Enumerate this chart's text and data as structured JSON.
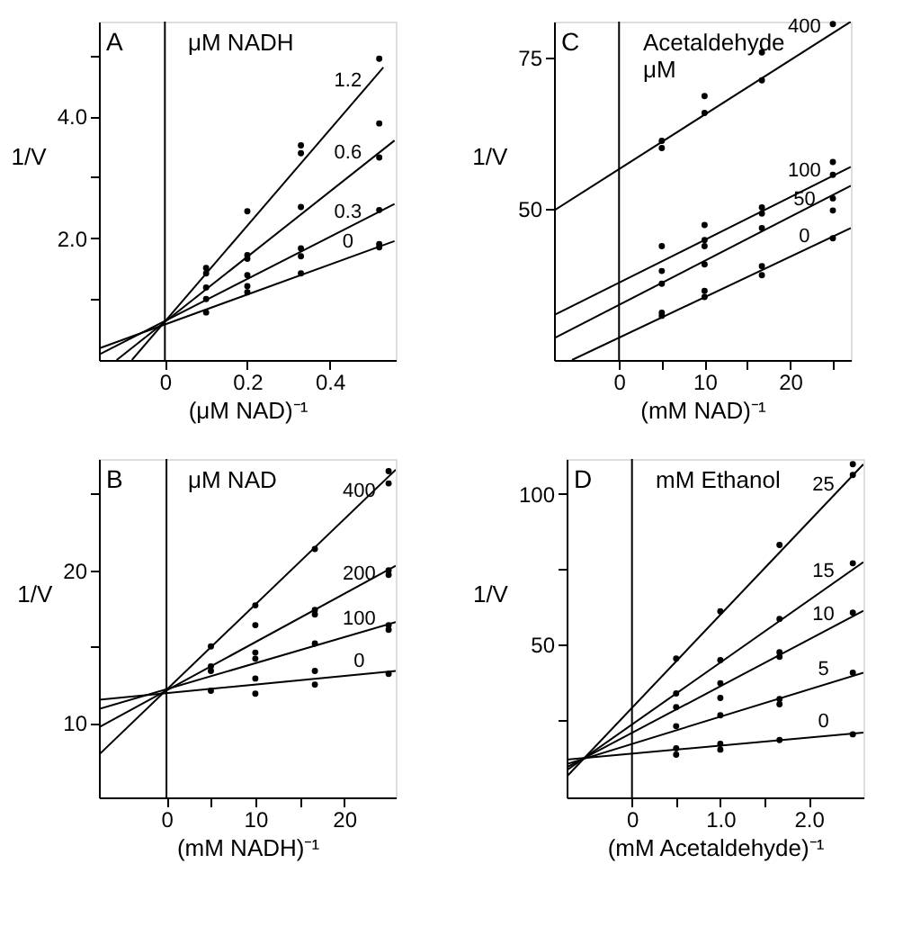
{
  "chart_data": [
    {
      "type": "scatter",
      "xlabel": "(μM NAD)⁻¹",
      "ylabel": "1/V",
      "legend_title": "μM NADH",
      "annotations": [
        "A"
      ],
      "legend": "right",
      "grid": false,
      "marker": "circle",
      "xlim": [
        -0.16,
        0.56
      ],
      "xticks": [
        0,
        0.2,
        0.4
      ],
      "ylim": [
        0,
        5.55
      ],
      "yticks": [
        {
          "value": 1,
          "label": null
        },
        {
          "value": 2,
          "label": "2.0"
        },
        {
          "value": 3,
          "label": null
        },
        {
          "value": 4,
          "label": "4.0"
        },
        {
          "value": 5,
          "label": null
        }
      ],
      "ref_lines": [
        {
          "axis": "x",
          "value": 0
        }
      ],
      "series": [
        {
          "name": "1.2",
          "color": "#000000",
          "x": [
            0.1,
            0.1,
            0.2,
            0.33,
            0.33,
            0.52
          ],
          "values": [
            1.51,
            1.42,
            2.44,
            3.52,
            3.39,
            4.94
          ]
        },
        {
          "name": "0.6",
          "color": "#000000",
          "x": [
            0.1,
            0.2,
            0.2,
            0.33,
            0.52,
            0.52
          ],
          "values": [
            1.19,
            1.72,
            1.66,
            2.51,
            3.32,
            3.88
          ]
        },
        {
          "name": "0.3",
          "color": "#000000",
          "x": [
            0.1,
            0.2,
            0.33,
            0.33,
            0.52
          ],
          "values": [
            1.0,
            1.39,
            1.83,
            1.7,
            2.46
          ]
        },
        {
          "name": "0",
          "color": "#000000",
          "x": [
            0.1,
            0.2,
            0.2,
            0.33,
            0.52,
            0.52
          ],
          "values": [
            0.78,
            1.21,
            1.11,
            1.42,
            1.85,
            1.9
          ]
        },
        {
          "type": "line",
          "marker": "none",
          "line_style": "solid",
          "color": "#000000",
          "x": [
            -0.08,
            0.53
          ],
          "values": [
            0,
            4.8
          ]
        },
        {
          "type": "line",
          "marker": "none",
          "line_style": "solid",
          "color": "#000000",
          "x": [
            -0.117,
            0.557
          ],
          "values": [
            0,
            3.6
          ]
        },
        {
          "type": "line",
          "marker": "none",
          "line_style": "solid",
          "color": "#000000",
          "x": [
            -0.156,
            0.557
          ],
          "values": [
            0.1,
            2.56
          ]
        },
        {
          "type": "line",
          "marker": "none",
          "line_style": "solid",
          "color": "#000000",
          "x": [
            -0.156,
            0.557
          ],
          "values": [
            0.2,
            1.95
          ]
        }
      ]
    },
    {
      "type": "scatter",
      "xlabel": "(mM NAD)⁻¹",
      "ylabel": "1/V",
      "legend_title": "Acetaldehyde\nμM",
      "annotations": [
        "C"
      ],
      "legend": "right",
      "grid": false,
      "marker": "circle",
      "xlim": [
        -7.6,
        27.1
      ],
      "xticks": [
        0,
        {
          "value": 5,
          "label": null
        },
        10,
        {
          "value": 15,
          "label": null
        },
        20,
        {
          "value": 25,
          "label": null
        }
      ],
      "ylim": [
        25,
        80.9
      ],
      "yticks": [
        50,
        75
      ],
      "ref_lines": [
        {
          "axis": "x",
          "value": 0
        }
      ],
      "series": [
        {
          "name": "400",
          "color": "#000000",
          "x": [
            5,
            5,
            10,
            10,
            16.7,
            16.7,
            25
          ],
          "values": [
            61.2,
            60,
            68.6,
            65.8,
            75.8,
            71.2,
            80.5
          ]
        },
        {
          "name": "100",
          "color": "#000000",
          "x": [
            5,
            10,
            10,
            16.7,
            16.7,
            25,
            25
          ],
          "values": [
            43.8,
            47.3,
            44.8,
            50.2,
            49.2,
            55.6,
            57.7
          ]
        },
        {
          "name": "50",
          "color": "#000000",
          "x": [
            5,
            5,
            10,
            10,
            16.7,
            25,
            25
          ],
          "values": [
            39.7,
            37.6,
            43.8,
            40.8,
            46.8,
            51.7,
            49.7
          ]
        },
        {
          "name": "0",
          "color": "#000000",
          "x": [
            5,
            5,
            10,
            10,
            16.7,
            16.7,
            25
          ],
          "values": [
            32.8,
            32.3,
            36.4,
            35.4,
            40.5,
            39,
            45.1
          ]
        },
        {
          "type": "line",
          "marker": "none",
          "line_style": "solid",
          "color": "#000000",
          "x": [
            -7.6,
            27.1
          ],
          "values": [
            49.7,
            80.9
          ]
        },
        {
          "type": "line",
          "marker": "none",
          "line_style": "solid",
          "color": "#000000",
          "x": [
            -7.6,
            27.1
          ],
          "values": [
            32.4,
            56.9
          ]
        },
        {
          "type": "line",
          "marker": "none",
          "line_style": "solid",
          "color": "#000000",
          "x": [
            -7.6,
            27.1
          ],
          "values": [
            28.6,
            53.8
          ]
        },
        {
          "type": "line",
          "marker": "none",
          "line_style": "solid",
          "color": "#000000",
          "x": [
            -5.5,
            27.1
          ],
          "values": [
            25,
            46.8
          ]
        }
      ]
    },
    {
      "type": "scatter",
      "xlabel": "(mM NADH)⁻¹",
      "ylabel": "1/V",
      "legend_title": "μM NAD",
      "annotations": [
        "B"
      ],
      "legend": "right",
      "grid": false,
      "marker": "circle",
      "xlim": [
        -7.6,
        25.8
      ],
      "xticks": [
        0,
        {
          "value": 5,
          "label": null
        },
        10,
        {
          "value": 15,
          "label": null
        },
        20
      ],
      "ylim": [
        5.1,
        27.3
      ],
      "yticks": [
        10,
        {
          "value": 15,
          "label": null
        },
        20,
        {
          "value": 25,
          "label": null
        }
      ],
      "ref_lines": [
        {
          "axis": "x",
          "value": 0
        }
      ],
      "series": [
        {
          "name": "400",
          "color": "#000000",
          "x": [
            5,
            10,
            16.7,
            25,
            25
          ],
          "values": [
            15,
            17.7,
            21.4,
            26.5,
            25.7
          ]
        },
        {
          "name": "200",
          "color": "#000000",
          "x": [
            5,
            10,
            16.7,
            16.7,
            25,
            25
          ],
          "values": [
            13.7,
            16.4,
            17.4,
            17.1,
            19.7,
            20
          ]
        },
        {
          "name": "100",
          "color": "#000000",
          "x": [
            5,
            10,
            10,
            16.7,
            25,
            25
          ],
          "values": [
            13.4,
            14.6,
            14.2,
            15.2,
            16.1,
            16.4
          ]
        },
        {
          "name": "0",
          "color": "#000000",
          "x": [
            5,
            10,
            10,
            16.7,
            16.7,
            25
          ],
          "values": [
            12.1,
            12.9,
            11.9,
            13.4,
            12.5,
            13.2
          ]
        },
        {
          "type": "line",
          "marker": "none",
          "line_style": "solid",
          "color": "#000000",
          "x": [
            -7.6,
            25.8
          ],
          "values": [
            7.9,
            26.6
          ]
        },
        {
          "type": "line",
          "marker": "none",
          "line_style": "solid",
          "color": "#000000",
          "x": [
            -7.6,
            25.8
          ],
          "values": [
            9.7,
            20.3
          ]
        },
        {
          "type": "line",
          "marker": "none",
          "line_style": "solid",
          "color": "#000000",
          "x": [
            -7.6,
            25.8
          ],
          "values": [
            10.9,
            16.6
          ]
        },
        {
          "type": "line",
          "marker": "none",
          "line_style": "solid",
          "color": "#000000",
          "x": [
            -7.6,
            25.8
          ],
          "values": [
            11.5,
            13.4
          ]
        }
      ]
    },
    {
      "type": "scatter",
      "xlabel": "(mM Acetaldehyde)⁻¹",
      "ylabel": "1/V",
      "legend_title": "mM Ethanol",
      "annotations": [
        "D"
      ],
      "legend": "right",
      "grid": false,
      "marker": "circle",
      "xlim": [
        -0.74,
        2.62
      ],
      "xticks": [
        0,
        {
          "value": 0.5,
          "label": null
        },
        {
          "value": 1,
          "label": "1.0"
        },
        {
          "value": 1.5,
          "label": null
        },
        {
          "value": 2,
          "label": "2.0"
        }
      ],
      "ylim": [
        -1,
        111.6
      ],
      "yticks": [
        {
          "value": 25,
          "label": null
        },
        50,
        {
          "value": 75,
          "label": null
        },
        100
      ],
      "ref_lines": [
        {
          "axis": "x",
          "value": 0
        }
      ],
      "series": [
        {
          "name": "25",
          "color": "#000000",
          "x": [
            0.5,
            1,
            1.67,
            2.5,
            2.5
          ],
          "values": [
            45.2,
            60.9,
            83,
            109.9,
            106.3
          ]
        },
        {
          "name": "15",
          "color": "#000000",
          "x": [
            0.5,
            1,
            1.67,
            2.5
          ],
          "values": [
            33.6,
            44.7,
            58.4,
            76.9
          ]
        },
        {
          "name": "10",
          "color": "#000000",
          "x": [
            0.5,
            1,
            1.67,
            1.67,
            2.5
          ],
          "values": [
            29,
            37,
            47.3,
            45.8,
            60.5
          ]
        },
        {
          "name": "5",
          "color": "#000000",
          "x": [
            0.5,
            1,
            1,
            1.67,
            1.67,
            2.5
          ],
          "values": [
            22.7,
            32.1,
            26.3,
            31.7,
            30,
            40.5
          ]
        },
        {
          "name": "0",
          "color": "#000000",
          "x": [
            0.5,
            0.5,
            1,
            1,
            1.67,
            2.5
          ],
          "values": [
            15.3,
            13.2,
            16.8,
            14.9,
            18.1,
            20
          ]
        },
        {
          "type": "line",
          "marker": "none",
          "line_style": "solid",
          "color": "#000000",
          "x": [
            -0.74,
            2.62
          ],
          "values": [
            5.9,
            109.9
          ]
        },
        {
          "type": "line",
          "marker": "none",
          "line_style": "solid",
          "color": "#000000",
          "x": [
            -0.74,
            2.62
          ],
          "values": [
            8,
            77.3
          ]
        },
        {
          "type": "line",
          "marker": "none",
          "line_style": "solid",
          "color": "#000000",
          "x": [
            -0.74,
            2.62
          ],
          "values": [
            9,
            61.1
          ]
        },
        {
          "type": "line",
          "marker": "none",
          "line_style": "solid",
          "color": "#000000",
          "x": [
            -0.74,
            2.62
          ],
          "values": [
            10.1,
            40.5
          ]
        },
        {
          "type": "line",
          "marker": "none",
          "line_style": "solid",
          "color": "#000000",
          "x": [
            -0.74,
            2.62
          ],
          "values": [
            11.6,
            20.6
          ]
        }
      ]
    }
  ]
}
